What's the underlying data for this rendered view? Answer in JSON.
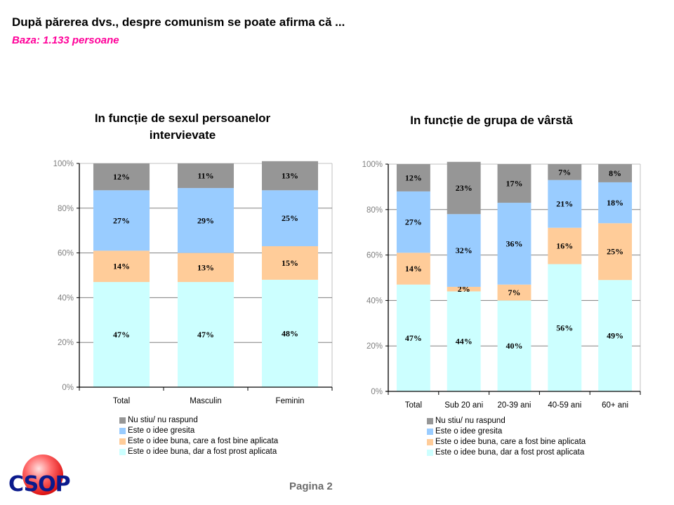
{
  "header": {
    "title": "După părerea dvs., despre comunism se poate afirma că ...",
    "subtitle": "Baza: 1.133 persoane"
  },
  "footer": {
    "logo_text": "CSOP",
    "page_label": "Pagina 2"
  },
  "colors": {
    "nu_stiu": "#969696",
    "idee_gresita": "#99ccff",
    "bine_aplicata": "#ffcc99",
    "prost_aplicata": "#ccffff",
    "subtitle": "#ff0099",
    "axis": "#000000",
    "gridline": "#808080",
    "tick_label": "#808080"
  },
  "chart_data": [
    {
      "type": "bar",
      "stacked": true,
      "percent": true,
      "title": "In funcție de sexul persoanelor intervievate",
      "title_lines": [
        "In funcție de sexul persoanelor",
        "intervievate"
      ],
      "categories": [
        "Total",
        "Masculin",
        "Feminin"
      ],
      "ylim": [
        0,
        100
      ],
      "yticks": [
        "0%",
        "20%",
        "40%",
        "60%",
        "80%",
        "100%"
      ],
      "grid": true,
      "legend_position": "bottom",
      "series": [
        {
          "name": "Este o idee buna, dar a fost prost aplicata",
          "key": "prost_aplicata",
          "values": [
            47,
            47,
            48
          ]
        },
        {
          "name": "Este o idee buna, care a fost bine aplicata",
          "key": "bine_aplicata",
          "values": [
            14,
            13,
            15
          ]
        },
        {
          "name": "Este o idee gresita",
          "key": "idee_gresita",
          "values": [
            27,
            29,
            25
          ]
        },
        {
          "name": "Nu stiu/ nu raspund",
          "key": "nu_stiu",
          "values": [
            12,
            11,
            13
          ]
        }
      ],
      "legend": [
        {
          "name": "Nu stiu/ nu raspund",
          "key": "nu_stiu"
        },
        {
          "name": "Este o idee gresita",
          "key": "idee_gresita"
        },
        {
          "name": "Este o idee buna, care a fost bine aplicata",
          "key": "bine_aplicata"
        },
        {
          "name": "Este o idee buna, dar a fost prost aplicata",
          "key": "prost_aplicata"
        }
      ]
    },
    {
      "type": "bar",
      "stacked": true,
      "percent": true,
      "title": "In funcție de grupa de vârstă",
      "title_lines": [
        "In funcție de grupa de vârstă"
      ],
      "categories": [
        "Total",
        "Sub 20 ani",
        "20-39 ani",
        "40-59 ani",
        "60+ ani"
      ],
      "ylim": [
        0,
        100
      ],
      "yticks": [
        "0%",
        "20%",
        "40%",
        "60%",
        "80%",
        "100%"
      ],
      "grid": true,
      "legend_position": "bottom",
      "series": [
        {
          "name": "Este o idee buna, dar a fost prost aplicata",
          "key": "prost_aplicata",
          "values": [
            47,
            44,
            40,
            56,
            49
          ]
        },
        {
          "name": "Este o idee buna, care a fost bine aplicata",
          "key": "bine_aplicata",
          "values": [
            14,
            2,
            7,
            16,
            25
          ]
        },
        {
          "name": "Este o idee gresita",
          "key": "idee_gresita",
          "values": [
            27,
            32,
            36,
            21,
            18
          ]
        },
        {
          "name": "Nu stiu/ nu raspund",
          "key": "nu_stiu",
          "values": [
            12,
            23,
            17,
            7,
            8
          ]
        }
      ],
      "legend": [
        {
          "name": "Nu stiu/ nu raspund",
          "key": "nu_stiu"
        },
        {
          "name": "Este o idee gresita",
          "key": "idee_gresita"
        },
        {
          "name": "Este o idee buna, care a fost bine aplicata",
          "key": "bine_aplicata"
        },
        {
          "name": "Este o idee buna, dar a fost prost aplicata",
          "key": "prost_aplicata"
        }
      ]
    }
  ]
}
